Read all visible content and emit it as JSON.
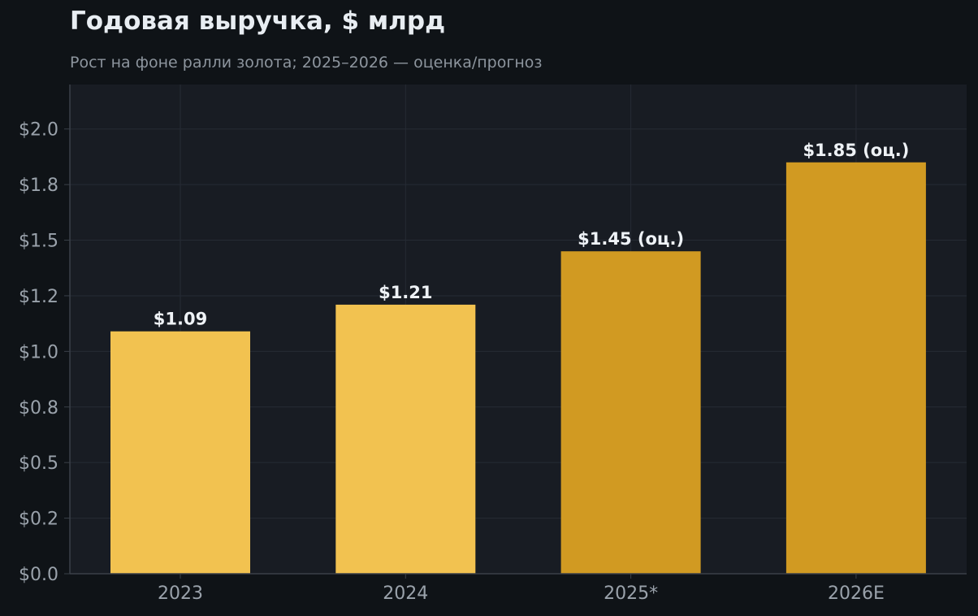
{
  "colors": {
    "page_background": "#0f1317",
    "plot_background": "#181c23",
    "grid": "#262b34",
    "axis": "#3a4049",
    "actual_bar": "#f2c250",
    "estimate_bar": "#d19a22",
    "title": "#e8edf2",
    "subtitle": "#8d959e",
    "tick_label": "#9aa2ab",
    "data_label": "#eef2f6"
  },
  "chart_data": {
    "type": "bar",
    "title": "Годовая выручка, $ млрд",
    "subtitle": "Рост на фоне ралли золота; 2025–2026 — оценка/прогноз",
    "categories": [
      "2023",
      "2024",
      "2025*",
      "2026E"
    ],
    "values": [
      1.09,
      1.21,
      1.45,
      1.85
    ],
    "data_labels": [
      "$1.09",
      "$1.21",
      "$1.45 (оц.)",
      "$1.85 (оц.)"
    ],
    "bar_kind": [
      "actual",
      "actual",
      "estimate",
      "estimate"
    ],
    "ylim": [
      0,
      2.2
    ],
    "yticks": [
      0,
      0.25,
      0.5,
      0.75,
      1.0,
      1.25,
      1.5,
      1.75,
      2.0
    ],
    "ytick_labels": [
      "$0.0",
      "$0.2",
      "$0.5",
      "$0.8",
      "$1.0",
      "$1.2",
      "$1.5",
      "$1.8",
      "$2.0"
    ],
    "xlabel": "",
    "ylabel": "",
    "grid": true,
    "legend": "none"
  }
}
